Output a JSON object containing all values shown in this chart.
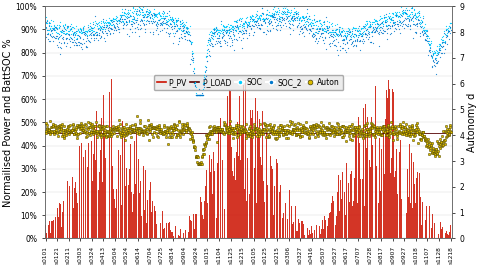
{
  "ylabel_left": "Normailised Power and BattSOC %",
  "ylabel_right": "Autonomy d",
  "ylim_left": [
    0,
    1.0
  ],
  "ylim_right": [
    0,
    9
  ],
  "yticks_left": [
    0,
    0.1,
    0.2,
    0.3,
    0.4,
    0.5,
    0.6,
    0.7,
    0.8,
    0.9,
    1.0
  ],
  "ytick_labels_left": [
    "0%",
    "10%",
    "20%",
    "30%",
    "40%",
    "50%",
    "60%",
    "70%",
    "80%",
    "90%",
    "100%"
  ],
  "yticks_right": [
    0,
    1,
    2,
    3,
    4,
    5,
    6,
    7,
    8,
    9
  ],
  "ppv_color": "#cc1100",
  "ppv_alpha": 0.85,
  "pload_color": "#550000",
  "soc_color": "#00ccff",
  "soc2_color": "#0077cc",
  "auton_color": "#ddbb00",
  "auton_edge": "#222200",
  "bg_color": "#ffffff",
  "legend_box_color": "#e8e8e8",
  "xticklabel_fontsize": 4.2,
  "axis_fontsize": 7,
  "legend_fontsize": 5.5,
  "tick_fontsize": 5.5,
  "xtick_labels": [
    "s0101",
    "s0121",
    "s0211",
    "s0303",
    "s0324",
    "s0413",
    "s0504",
    "s0524",
    "s0614",
    "s0704",
    "s0725",
    "s0814",
    "s0904",
    "s0924",
    "s1015",
    "s1104",
    "s1125",
    "s1215",
    "s0105",
    "s0125",
    "s0215",
    "s0306",
    "s0327",
    "s0416",
    "s0507",
    "s0527",
    "s0617",
    "s0707",
    "s0728",
    "s0817",
    "s0907",
    "s0927",
    "s1018",
    "s1107",
    "s1128",
    "s1218"
  ]
}
